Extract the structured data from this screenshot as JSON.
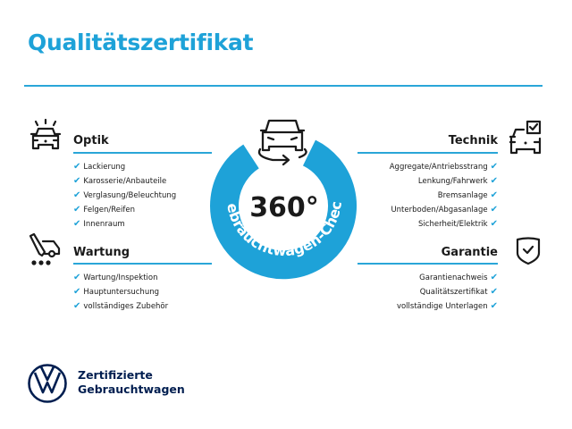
{
  "title": "Qualitätszertifikat",
  "colors": {
    "accent": "#1ea2d8",
    "brand_navy": "#001e50",
    "text": "#1a1a1a"
  },
  "badge": {
    "value": "360°",
    "ring_text": "Gebrauchtwagen-Check",
    "icon": "car-rotate-icon"
  },
  "sections": {
    "optik": {
      "heading": "Optik",
      "icon": "car-lights-icon",
      "items": [
        "Lackierung",
        "Karosserie/Anbauteile",
        "Verglasung/Beleuchtung",
        "Felgen/Reifen",
        "Innenraum"
      ]
    },
    "wartung": {
      "heading": "Wartung",
      "icon": "service-wrench-car-icon",
      "items": [
        "Wartung/Inspektion",
        "Hauptuntersuchung",
        "vollständiges Zubehör"
      ]
    },
    "technik": {
      "heading": "Technik",
      "icon": "car-checkbox-icon",
      "items": [
        "Aggregate/Antriebsstrang",
        "Lenkung/Fahrwerk",
        "Bremsanlage",
        "Unterboden/Abgasanlage",
        "Sicherheit/Elektrik"
      ]
    },
    "garantie": {
      "heading": "Garantie",
      "icon": "shield-check-icon",
      "items": [
        "Garantienachweis",
        "Qualitätszertifikat",
        "vollständige Unterlagen"
      ]
    }
  },
  "check_glyph": "✔",
  "logo": {
    "icon": "vw-logo",
    "line1": "Zertifizierte",
    "line2": "Gebrauchtwagen"
  }
}
